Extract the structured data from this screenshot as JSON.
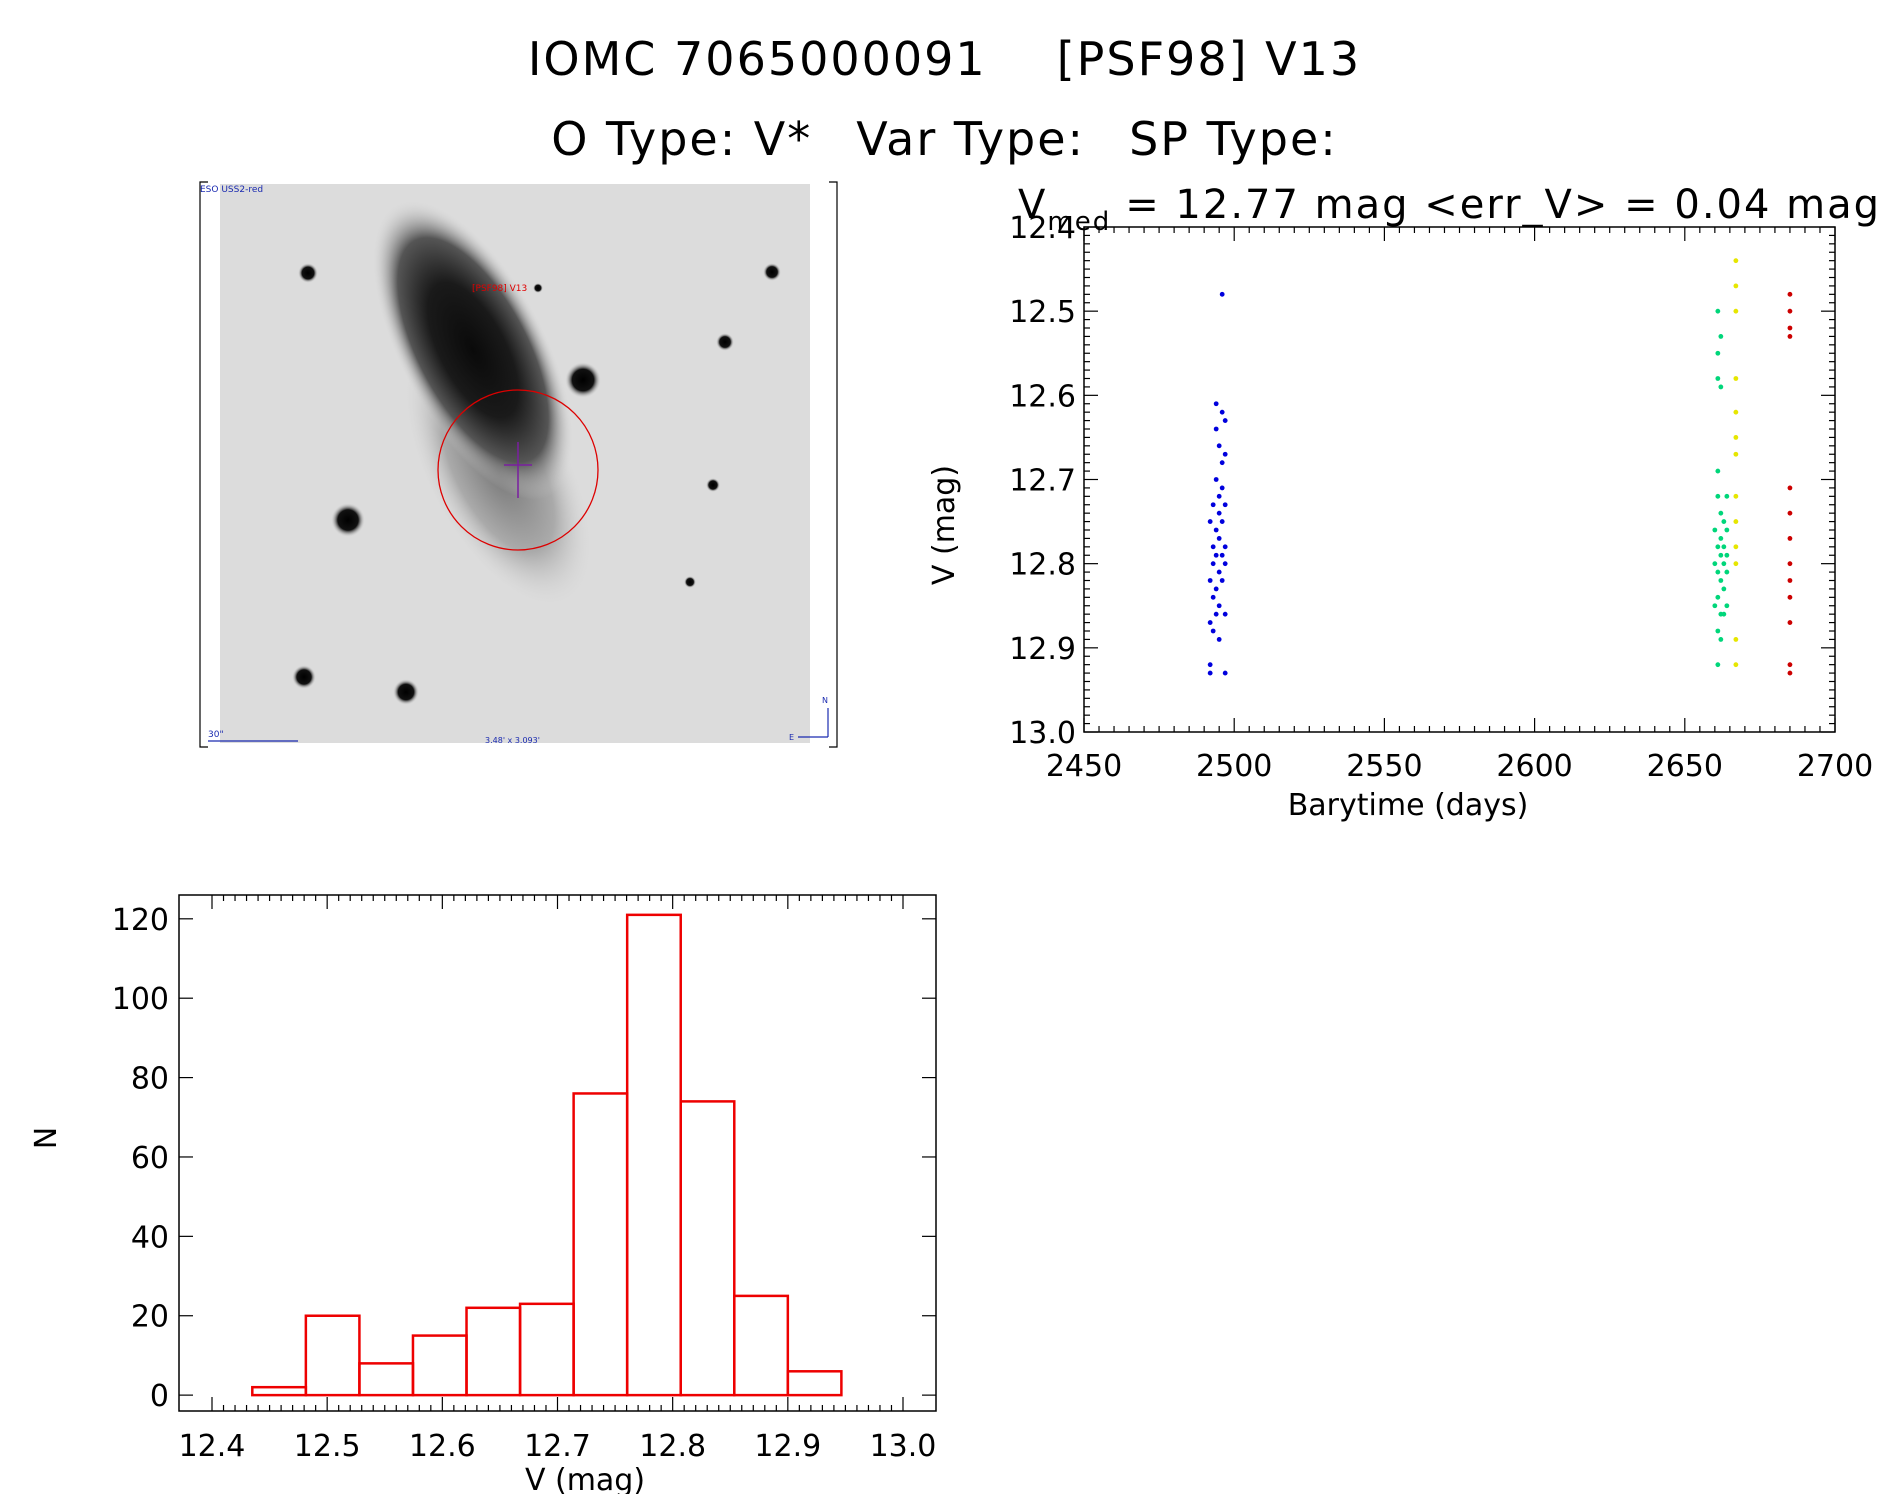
{
  "header": {
    "object_id": "IOMC 7065000091",
    "alt_name": "[PSF98] V13",
    "o_type": "O Type: V*",
    "var_type": "Var Type:",
    "sp_type": "SP Type:"
  },
  "image_panel": {
    "survey_label": "ESO USS2-red",
    "target_label": "[PSF98] V13",
    "scale_label": "30\"",
    "size_label": "3.48' x 3.093'",
    "compass_n": "N",
    "compass_e": "E"
  },
  "chart_data": [
    {
      "type": "scatter",
      "title_main": "V",
      "title_sub": "med",
      "title_rest": "= 12.77 mag <err_V> = 0.04 mag",
      "xlabel": "Barytime (days)",
      "ylabel": "V (mag)",
      "xlim": [
        2450,
        2700
      ],
      "ylim": [
        13.0,
        12.4
      ],
      "x_ticks": [
        "2450",
        "2500",
        "2550",
        "2600",
        "2650",
        "2700"
      ],
      "y_ticks": [
        "12.4",
        "12.5",
        "12.6",
        "12.7",
        "12.8",
        "12.9",
        "13.0"
      ],
      "grid": false,
      "series": [
        {
          "color": "#0000dd",
          "points": [
            [
              2492,
              12.75
            ],
            [
              2492,
              12.92
            ],
            [
              2492,
              12.93
            ],
            [
              2492,
              12.87
            ],
            [
              2492,
              12.82
            ],
            [
              2493,
              12.88
            ],
            [
              2493,
              12.73
            ],
            [
              2493,
              12.78
            ],
            [
              2493,
              12.8
            ],
            [
              2493,
              12.84
            ],
            [
              2494,
              12.61
            ],
            [
              2494,
              12.64
            ],
            [
              2494,
              12.7
            ],
            [
              2494,
              12.76
            ],
            [
              2494,
              12.79
            ],
            [
              2494,
              12.83
            ],
            [
              2494,
              12.86
            ],
            [
              2495,
              12.66
            ],
            [
              2495,
              12.72
            ],
            [
              2495,
              12.74
            ],
            [
              2495,
              12.77
            ],
            [
              2495,
              12.81
            ],
            [
              2495,
              12.85
            ],
            [
              2495,
              12.89
            ],
            [
              2496,
              12.48
            ],
            [
              2496,
              12.62
            ],
            [
              2496,
              12.68
            ],
            [
              2496,
              12.71
            ],
            [
              2496,
              12.75
            ],
            [
              2496,
              12.79
            ],
            [
              2496,
              12.82
            ],
            [
              2497,
              12.63
            ],
            [
              2497,
              12.67
            ],
            [
              2497,
              12.73
            ],
            [
              2497,
              12.78
            ],
            [
              2497,
              12.8
            ],
            [
              2497,
              12.86
            ],
            [
              2497,
              12.93
            ]
          ]
        },
        {
          "color": "#00d67a",
          "points": [
            [
              2660,
              12.85
            ],
            [
              2660,
              12.8
            ],
            [
              2660,
              12.76
            ],
            [
              2661,
              12.5
            ],
            [
              2661,
              12.55
            ],
            [
              2661,
              12.58
            ],
            [
              2661,
              12.69
            ],
            [
              2661,
              12.72
            ],
            [
              2661,
              12.78
            ],
            [
              2661,
              12.81
            ],
            [
              2661,
              12.84
            ],
            [
              2661,
              12.88
            ],
            [
              2661,
              12.92
            ],
            [
              2662,
              12.53
            ],
            [
              2662,
              12.59
            ],
            [
              2662,
              12.74
            ],
            [
              2662,
              12.77
            ],
            [
              2662,
              12.79
            ],
            [
              2662,
              12.82
            ],
            [
              2662,
              12.86
            ],
            [
              2662,
              12.89
            ],
            [
              2663,
              12.75
            ],
            [
              2663,
              12.78
            ],
            [
              2663,
              12.8
            ],
            [
              2663,
              12.83
            ],
            [
              2663,
              12.86
            ],
            [
              2664,
              12.72
            ],
            [
              2664,
              12.76
            ],
            [
              2664,
              12.79
            ],
            [
              2664,
              12.81
            ],
            [
              2664,
              12.85
            ]
          ]
        },
        {
          "color": "#e6e600",
          "points": [
            [
              2667,
              12.44
            ],
            [
              2667,
              12.47
            ],
            [
              2667,
              12.5
            ],
            [
              2667,
              12.58
            ],
            [
              2667,
              12.62
            ],
            [
              2667,
              12.65
            ],
            [
              2667,
              12.67
            ],
            [
              2667,
              12.72
            ],
            [
              2667,
              12.75
            ],
            [
              2667,
              12.78
            ],
            [
              2667,
              12.8
            ],
            [
              2667,
              12.89
            ],
            [
              2667,
              12.92
            ]
          ]
        },
        {
          "color": "#cc0000",
          "points": [
            [
              2685,
              12.48
            ],
            [
              2685,
              12.5
            ],
            [
              2685,
              12.52
            ],
            [
              2685,
              12.53
            ],
            [
              2685,
              12.71
            ],
            [
              2685,
              12.74
            ],
            [
              2685,
              12.77
            ],
            [
              2685,
              12.8
            ],
            [
              2685,
              12.82
            ],
            [
              2685,
              12.84
            ],
            [
              2685,
              12.87
            ],
            [
              2685,
              12.92
            ],
            [
              2685,
              12.93
            ]
          ]
        }
      ]
    },
    {
      "type": "bar",
      "xlabel": "V (mag)",
      "ylabel": "N",
      "xlim": [
        12.4,
        13.0
      ],
      "ylim": [
        -4,
        126
      ],
      "x_ticks": [
        "12.4",
        "12.5",
        "12.6",
        "12.7",
        "12.8",
        "12.9",
        "13.0"
      ],
      "y_ticks": [
        "0",
        "20",
        "40",
        "60",
        "80",
        "100",
        "120"
      ],
      "bin_width": 0.0465,
      "color": "#ee0000",
      "bins": [
        {
          "left": 12.435,
          "count": 2
        },
        {
          "left": 12.4815,
          "count": 20
        },
        {
          "left": 12.528,
          "count": 8
        },
        {
          "left": 12.5745,
          "count": 15
        },
        {
          "left": 12.621,
          "count": 22
        },
        {
          "left": 12.6675,
          "count": 23
        },
        {
          "left": 12.714,
          "count": 76
        },
        {
          "left": 12.7605,
          "count": 121
        },
        {
          "left": 12.807,
          "count": 74
        },
        {
          "left": 12.8535,
          "count": 25
        },
        {
          "left": 12.9,
          "count": 6
        }
      ]
    }
  ]
}
